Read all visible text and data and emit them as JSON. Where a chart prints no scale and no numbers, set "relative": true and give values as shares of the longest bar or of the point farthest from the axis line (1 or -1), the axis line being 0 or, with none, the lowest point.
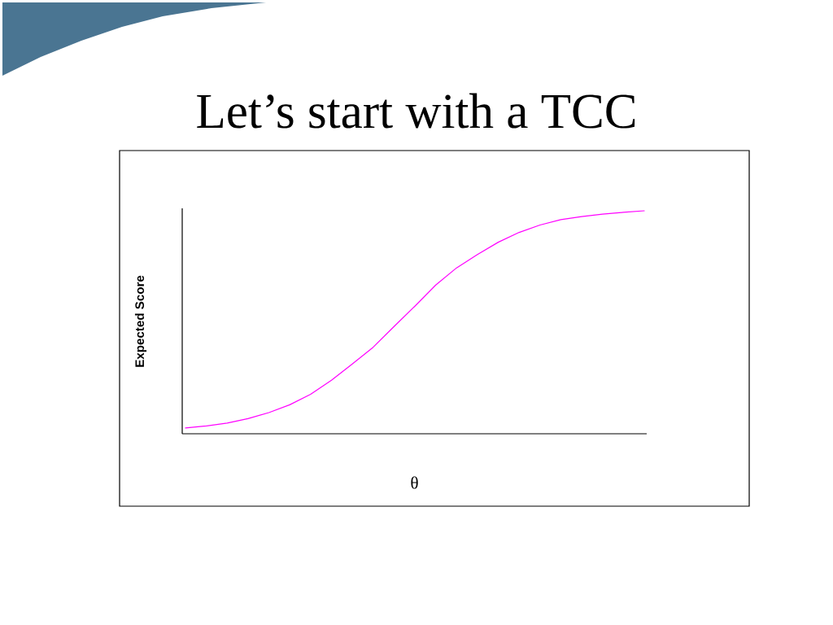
{
  "chart_data": {
    "type": "line",
    "title": "Let’s start with a TCC",
    "xlabel": "θ",
    "ylabel": "Expected Score",
    "relative": true,
    "categories": [
      null,
      null,
      null,
      null,
      null,
      null,
      null,
      null,
      null,
      null,
      null,
      null,
      null,
      null,
      null,
      null,
      null,
      null,
      null,
      null,
      null,
      null,
      null
    ],
    "color": "#ff00ff",
    "values": [
      0.026,
      0.035,
      0.048,
      0.068,
      0.095,
      0.13,
      0.177,
      0.24,
      0.313,
      0.388,
      0.481,
      0.572,
      0.667,
      0.744,
      0.804,
      0.859,
      0.903,
      0.936,
      0.96,
      0.974,
      0.985,
      0.993,
      1
    ]
  }
}
